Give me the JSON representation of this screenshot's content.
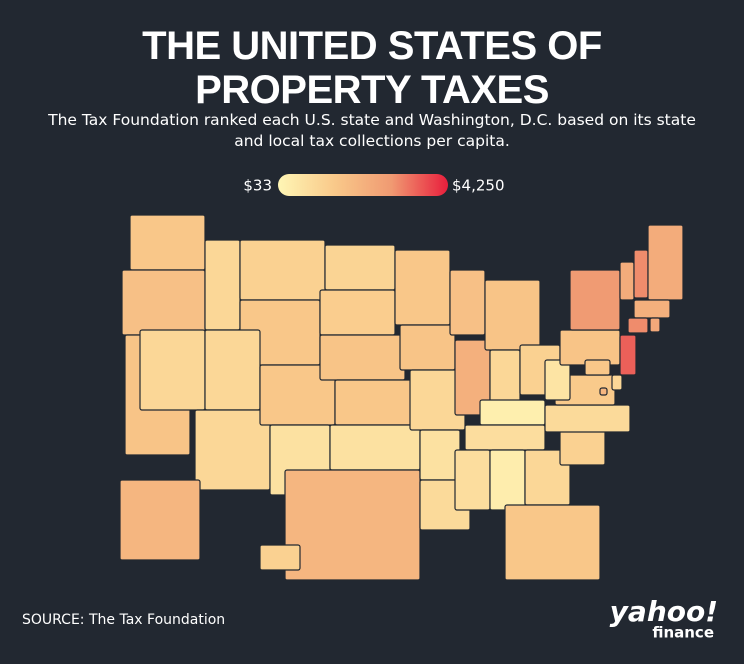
{
  "title": "THE UNITED STATES OF PROPERTY TAXES",
  "subtitle": "The Tax Foundation ranked each U.S. state and Washington, D.C. based on its state and local tax collections per capita.",
  "legend": {
    "min": {
      "value": 33,
      "label": "$33"
    },
    "max": {
      "value": 4250,
      "label": "$4,250"
    },
    "colors": [
      "#fff6b5",
      "#f9c98a",
      "#f09a72",
      "#e81e3c"
    ]
  },
  "regions": {
    "values": [
      1500,
      1700,
      1600,
      1000,
      1000,
      1200,
      1500,
      1000,
      1000,
      1500,
      700,
      1100,
      1300,
      1600,
      1500,
      700,
      2000,
      1500,
      1600,
      1000,
      700,
      900,
      1700,
      2200,
      1600,
      1000,
      1200,
      250,
      800,
      800,
      300,
      1000,
      1500,
      1200,
      900,
      1400,
      600,
      1600,
      2800,
      2300,
      3000,
      2300,
      2200,
      3000,
      2400,
      3500,
      1000,
      1500,
      2000,
      2000,
      1200
    ]
  },
  "source": "SOURCE: The Tax Foundation",
  "logo": {
    "brand": "yahoo!",
    "product": "finance"
  }
}
